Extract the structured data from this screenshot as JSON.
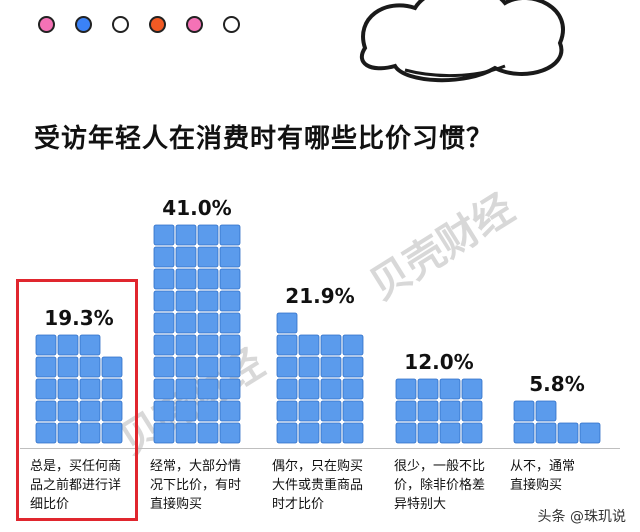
{
  "title": "受访年轻人在消费时有哪些比价习惯？",
  "colors": {
    "tile": "#5b9bec",
    "tile_edge": "#2f6fc6",
    "highlight": "#e0262e",
    "dots": [
      "#f472b6",
      "#3b82f6",
      "#ffffff",
      "#f15a24",
      "#f472b6",
      "#ffffff"
    ]
  },
  "watermark": {
    "text": "贝壳财经"
  },
  "footer": {
    "text": "头条 @珠玑说"
  },
  "chart_data": {
    "type": "bar",
    "unit": "%",
    "categories": [
      "总是，买任何商品之前都进行详细比价",
      "经常，大部分情况下比价，有时直接购买",
      "偶尔，只在购买大件或贵重商品时才比价",
      "很少，一般不比价，除非价格差异特别大",
      "从不，通常直接购买"
    ],
    "values": [
      19.3,
      41.0,
      21.9,
      12.0,
      5.8
    ],
    "value_labels": [
      "19.3%",
      "41.0%",
      "21.9%",
      "12.0%",
      "5.8%"
    ],
    "highlighted_index": 0,
    "ylim": [
      0,
      41.0
    ]
  },
  "categories_display": [
    [
      "总是，买任何商",
      "品之前都进行详",
      "细比价"
    ],
    [
      "经常，大部分情",
      "况下比价，有时",
      "直接购买"
    ],
    [
      "偶尔，只在购买",
      "大件或贵重商品",
      "时才比价"
    ],
    [
      "很少，一般不比",
      "价，除非价格差",
      "异特别大"
    ],
    [
      "从不，通常",
      "直接购买"
    ]
  ]
}
